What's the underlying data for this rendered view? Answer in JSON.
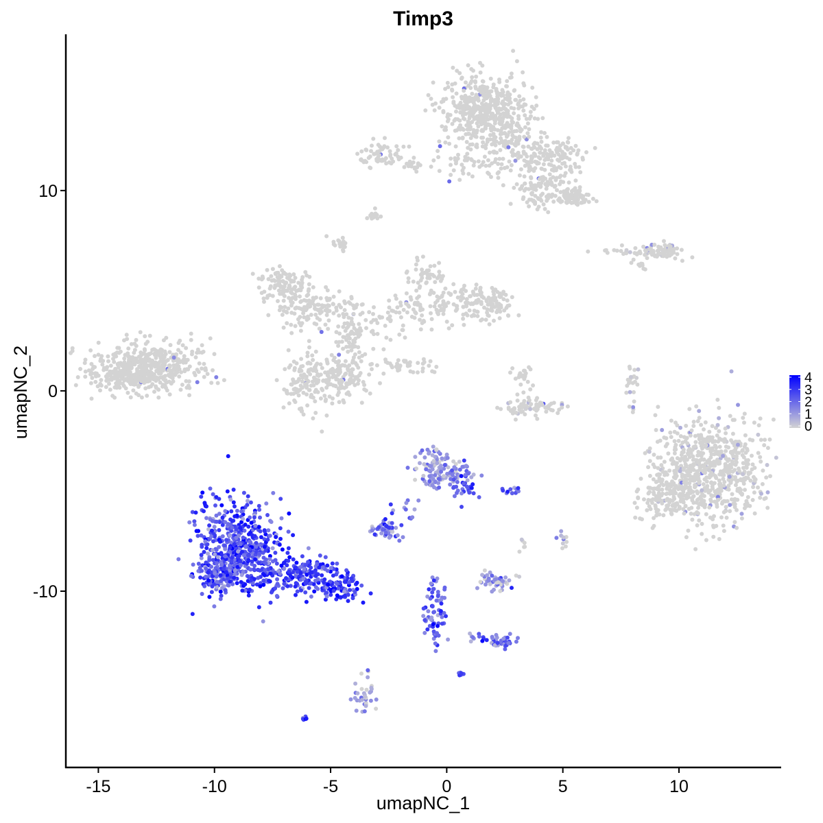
{
  "chart_data": {
    "type": "scatter",
    "title": "Timp3",
    "xlabel": "umapNC_1",
    "ylabel": "umapNC_2",
    "xlim": [
      -16.4,
      14.4
    ],
    "ylim": [
      -18.8,
      17.8
    ],
    "x_ticks": [
      -15,
      -10,
      -5,
      0,
      5,
      10
    ],
    "x_tick_labels": [
      "-15",
      "-10",
      "-5",
      "0",
      "5",
      "10"
    ],
    "y_ticks": [
      -10,
      0,
      10
    ],
    "y_tick_labels": [
      "-10",
      "0",
      "10"
    ],
    "grid": false,
    "legend": {
      "position": "right",
      "type": "colorbar",
      "min": 0,
      "max": 4,
      "ticks": [
        0,
        1,
        2,
        3,
        4
      ],
      "tick_labels": [
        "0",
        "1",
        "2",
        "3",
        "4"
      ],
      "low_color": "#d3d3d3",
      "high_color": "#0000ff"
    },
    "clusters": [
      {
        "cx": -13.3,
        "cy": 1.0,
        "sx": 1.1,
        "sy": 0.55,
        "n": 420,
        "expr": 0.0
      },
      {
        "cx": -12.0,
        "cy": 1.4,
        "sx": 0.9,
        "sy": 0.6,
        "n": 120,
        "expr": 0.0
      },
      {
        "cx": -7.0,
        "cy": 5.3,
        "sx": 0.6,
        "sy": 0.45,
        "n": 120,
        "expr": 0.0
      },
      {
        "cx": -5.8,
        "cy": 4.1,
        "sx": 0.8,
        "sy": 0.5,
        "n": 110,
        "expr": 0.0
      },
      {
        "cx": -4.8,
        "cy": 0.6,
        "sx": 0.7,
        "sy": 0.7,
        "n": 160,
        "expr": 0.0
      },
      {
        "cx": -6.2,
        "cy": 0.4,
        "sx": 0.5,
        "sy": 0.6,
        "n": 90,
        "expr": 0.0
      },
      {
        "cx": -4.2,
        "cy": 2.5,
        "sx": 0.35,
        "sy": 1.0,
        "n": 60,
        "expr": 0.0
      },
      {
        "cx": -3.2,
        "cy": 3.4,
        "sx": 0.9,
        "sy": 0.5,
        "n": 60,
        "expr": 0.0
      },
      {
        "cx": -1.2,
        "cy": 4.0,
        "sx": 0.7,
        "sy": 0.4,
        "n": 60,
        "expr": 0.0
      },
      {
        "cx": -0.9,
        "cy": 5.7,
        "sx": 0.4,
        "sy": 0.5,
        "n": 50,
        "expr": 0.0
      },
      {
        "cx": 1.9,
        "cy": 4.3,
        "sx": 0.5,
        "sy": 0.4,
        "n": 90,
        "expr": 0.0
      },
      {
        "cx": 0.5,
        "cy": 4.6,
        "sx": 0.6,
        "sy": 0.5,
        "n": 60,
        "expr": 0.0
      },
      {
        "cx": -1.7,
        "cy": 1.3,
        "sx": 0.6,
        "sy": 0.2,
        "n": 40,
        "expr": 0.0
      },
      {
        "cx": -4.5,
        "cy": 7.3,
        "sx": 0.2,
        "sy": 0.2,
        "n": 20,
        "expr": 0.0
      },
      {
        "cx": -3.1,
        "cy": 8.8,
        "sx": 0.2,
        "sy": 0.12,
        "n": 15,
        "expr": 0.0
      },
      {
        "cx": 1.6,
        "cy": 14.0,
        "sx": 0.9,
        "sy": 0.9,
        "n": 480,
        "expr": 0.0
      },
      {
        "cx": 2.8,
        "cy": 12.5,
        "sx": 0.6,
        "sy": 1.0,
        "n": 110,
        "expr": 0.0
      },
      {
        "cx": 4.5,
        "cy": 11.0,
        "sx": 0.6,
        "sy": 0.7,
        "n": 110,
        "expr": 0.0
      },
      {
        "cx": 5.5,
        "cy": 9.7,
        "sx": 0.35,
        "sy": 0.2,
        "n": 90,
        "expr": 0.0
      },
      {
        "cx": 3.9,
        "cy": 9.9,
        "sx": 0.5,
        "sy": 0.5,
        "n": 60,
        "expr": 0.0
      },
      {
        "cx": 4.8,
        "cy": 12.0,
        "sx": 0.7,
        "sy": 0.3,
        "n": 60,
        "expr": 0.0
      },
      {
        "cx": 1.3,
        "cy": 11.4,
        "sx": 0.8,
        "sy": 0.4,
        "n": 50,
        "expr": 0.0
      },
      {
        "cx": -2.8,
        "cy": 11.8,
        "sx": 0.5,
        "sy": 0.35,
        "n": 60,
        "expr": 0.0
      },
      {
        "cx": -1.5,
        "cy": 11.3,
        "sx": 0.4,
        "sy": 0.15,
        "n": 20,
        "expr": 0.0
      },
      {
        "cx": 8.5,
        "cy": 6.9,
        "sx": 0.8,
        "sy": 0.15,
        "n": 60,
        "expr": 0.05
      },
      {
        "cx": 9.4,
        "cy": 7.0,
        "sx": 0.35,
        "sy": 0.2,
        "n": 40,
        "expr": 0.1
      },
      {
        "cx": 8.4,
        "cy": 6.2,
        "sx": 0.2,
        "sy": 0.12,
        "n": 8,
        "expr": 0.0
      },
      {
        "cx": 3.6,
        "cy": -0.8,
        "sx": 0.7,
        "sy": 0.25,
        "n": 70,
        "expr": 0.05
      },
      {
        "cx": 3.2,
        "cy": 0.5,
        "sx": 0.3,
        "sy": 0.4,
        "n": 25,
        "expr": 0.0
      },
      {
        "cx": 8.0,
        "cy": 0.3,
        "sx": 0.15,
        "sy": 0.6,
        "n": 25,
        "expr": 0.05
      },
      {
        "cx": 11.3,
        "cy": -4.0,
        "sx": 1.1,
        "sy": 1.3,
        "n": 720,
        "expr": 0.02
      },
      {
        "cx": 9.4,
        "cy": -5.3,
        "sx": 0.6,
        "sy": 0.6,
        "n": 120,
        "expr": 0.0
      },
      {
        "cx": -8.9,
        "cy": -7.8,
        "sx": 0.9,
        "sy": 1.2,
        "n": 520,
        "expr": 0.65
      },
      {
        "cx": -9.8,
        "cy": -9.2,
        "sx": 0.6,
        "sy": 0.4,
        "n": 120,
        "expr": 0.55
      },
      {
        "cx": -6.5,
        "cy": -9.1,
        "sx": 0.9,
        "sy": 0.45,
        "n": 180,
        "expr": 0.68
      },
      {
        "cx": -4.6,
        "cy": -9.8,
        "sx": 0.6,
        "sy": 0.3,
        "n": 90,
        "expr": 0.72
      },
      {
        "cx": -0.4,
        "cy": -3.9,
        "sx": 0.5,
        "sy": 0.5,
        "n": 110,
        "expr": 0.28
      },
      {
        "cx": 0.7,
        "cy": -4.6,
        "sx": 0.3,
        "sy": 0.45,
        "n": 45,
        "expr": 0.45
      },
      {
        "cx": -2.6,
        "cy": -6.9,
        "sx": 0.3,
        "sy": 0.2,
        "n": 50,
        "expr": 0.45
      },
      {
        "cx": -1.8,
        "cy": -6.0,
        "sx": 0.3,
        "sy": 0.3,
        "n": 12,
        "expr": 0.45
      },
      {
        "cx": -0.5,
        "cy": -11.0,
        "sx": 0.25,
        "sy": 0.8,
        "n": 70,
        "expr": 0.5
      },
      {
        "cx": 2.2,
        "cy": -9.5,
        "sx": 0.4,
        "sy": 0.25,
        "n": 50,
        "expr": 0.2
      },
      {
        "cx": 2.4,
        "cy": -12.6,
        "sx": 0.3,
        "sy": 0.15,
        "n": 30,
        "expr": 0.5
      },
      {
        "cx": 1.7,
        "cy": -12.3,
        "sx": 0.5,
        "sy": 0.15,
        "n": 18,
        "expr": 0.45
      },
      {
        "cx": 2.8,
        "cy": -5.0,
        "sx": 0.2,
        "sy": 0.1,
        "n": 12,
        "expr": 0.5
      },
      {
        "cx": -3.6,
        "cy": -15.2,
        "sx": 0.2,
        "sy": 0.5,
        "n": 35,
        "expr": 0.25
      },
      {
        "cx": 0.6,
        "cy": -14.1,
        "sx": 0.05,
        "sy": 0.05,
        "n": 8,
        "expr": 0.6
      },
      {
        "cx": -6.1,
        "cy": -16.3,
        "sx": 0.08,
        "sy": 0.05,
        "n": 6,
        "expr": 0.6
      },
      {
        "cx": 5.0,
        "cy": -7.5,
        "sx": 0.12,
        "sy": 0.3,
        "n": 10,
        "expr": 0.3
      },
      {
        "cx": 3.3,
        "cy": -7.7,
        "sx": 0.1,
        "sy": 0.15,
        "n": 6,
        "expr": 0.1
      }
    ]
  }
}
